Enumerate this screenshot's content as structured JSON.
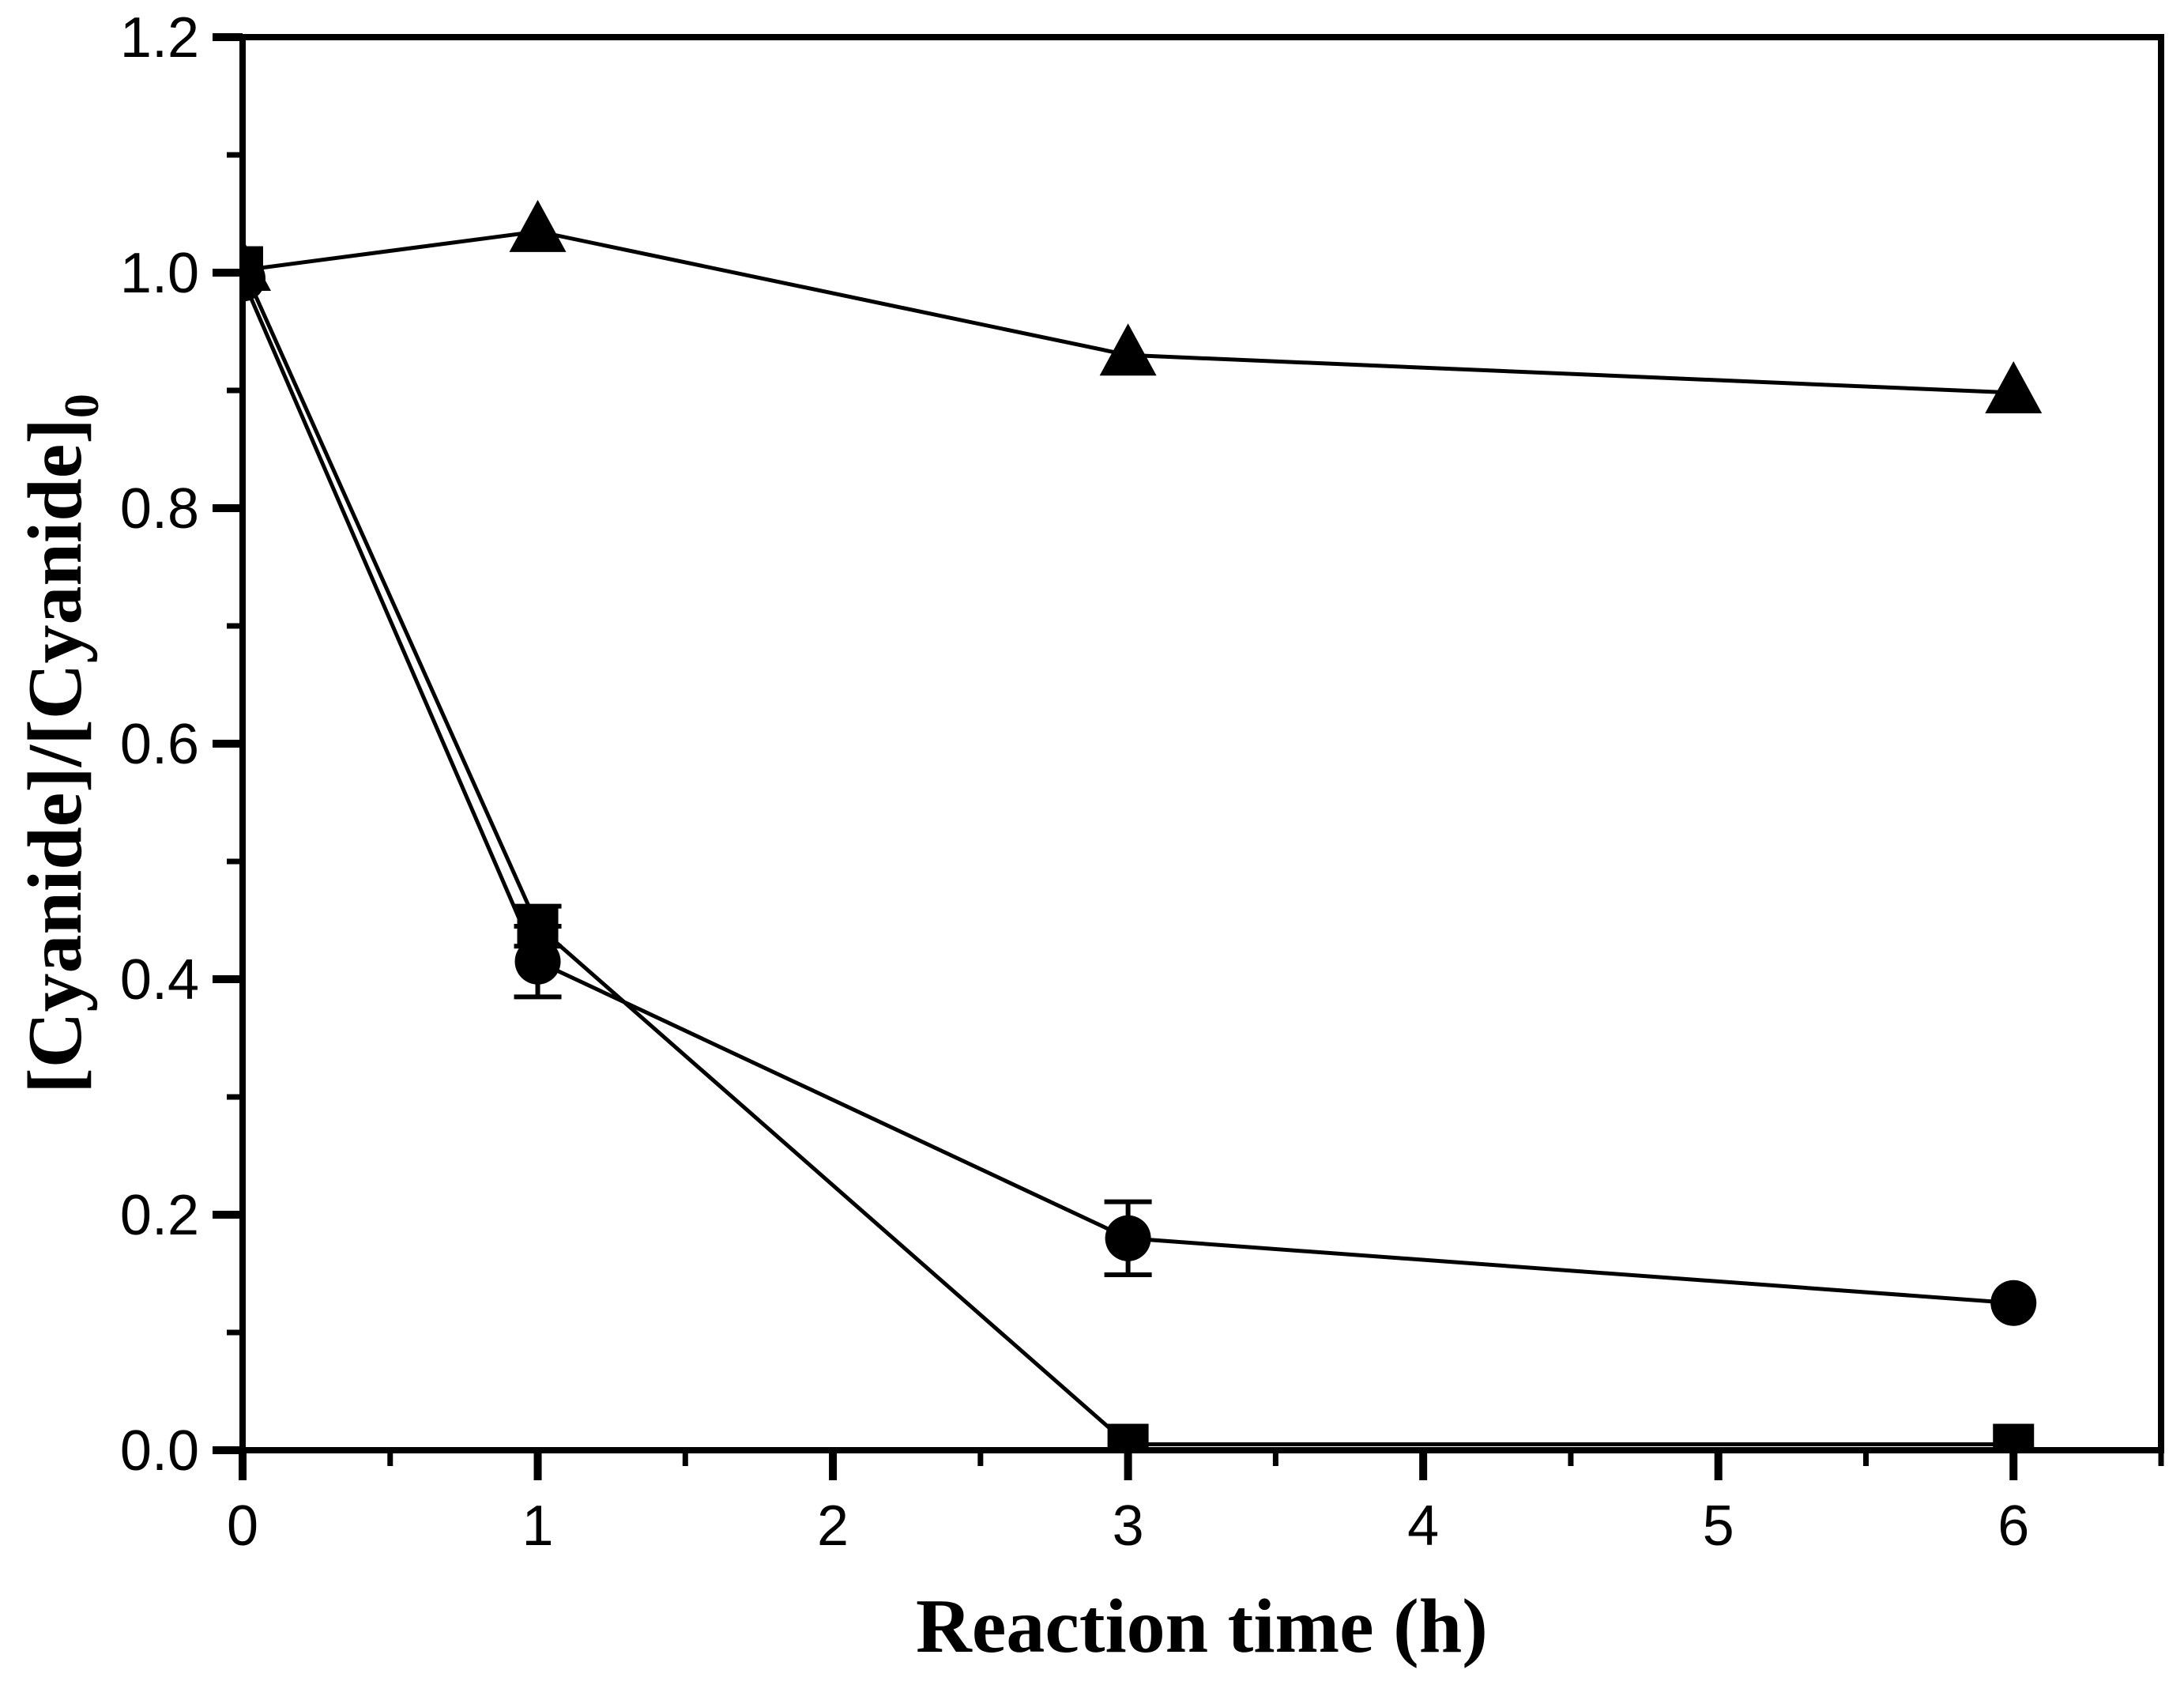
{
  "figure": {
    "background": "#ffffff",
    "ink_color": "#000000"
  },
  "chart_data": {
    "type": "line",
    "title": "",
    "xlabel": "Reaction time (h)",
    "ylabel_main": "[Cyanide]/[Cyanide]",
    "ylabel_sub": "0",
    "xlim": [
      0,
      6.5
    ],
    "ylim": [
      0,
      1.2
    ],
    "grid": false,
    "legend": "none",
    "x_ticks": [
      {
        "v": 0,
        "label": "0"
      },
      {
        "v": 1,
        "label": "1"
      },
      {
        "v": 2,
        "label": "2"
      },
      {
        "v": 3,
        "label": "3"
      },
      {
        "v": 4,
        "label": "4"
      },
      {
        "v": 5,
        "label": "5"
      },
      {
        "v": 6,
        "label": "6"
      }
    ],
    "x_minor_ticks": [
      0.5,
      1.5,
      2.5,
      3.5,
      4.5,
      5.5,
      6.5
    ],
    "y_ticks": [
      {
        "v": 0.0,
        "label": "0.0"
      },
      {
        "v": 0.2,
        "label": "0.2"
      },
      {
        "v": 0.4,
        "label": "0.4"
      },
      {
        "v": 0.6,
        "label": "0.6"
      },
      {
        "v": 0.8,
        "label": "0.8"
      },
      {
        "v": 1.0,
        "label": "1.0"
      },
      {
        "v": 1.2,
        "label": "1.2"
      }
    ],
    "y_minor_ticks": [
      0.1,
      0.3,
      0.5,
      0.7,
      0.9,
      1.1
    ],
    "series": [
      {
        "name": "triangle-series",
        "marker": "triangle",
        "color": "#000000",
        "x": [
          0,
          1,
          3,
          6
        ],
        "y": [
          1.002,
          1.035,
          0.93,
          0.898
        ],
        "yerr": [
          0,
          0,
          0,
          0
        ]
      },
      {
        "name": "circle-series",
        "marker": "circle",
        "color": "#000000",
        "x": [
          0,
          1,
          3,
          6
        ],
        "y": [
          0.995,
          0.415,
          0.18,
          0.125
        ],
        "yerr": [
          0,
          0.03,
          0.031,
          0
        ]
      },
      {
        "name": "square-series",
        "marker": "square",
        "color": "#000000",
        "x": [
          0,
          1,
          3,
          6
        ],
        "y": [
          1.005,
          0.445,
          0.005,
          0.005
        ],
        "yerr": [
          0,
          0.017,
          0,
          0
        ]
      }
    ]
  }
}
